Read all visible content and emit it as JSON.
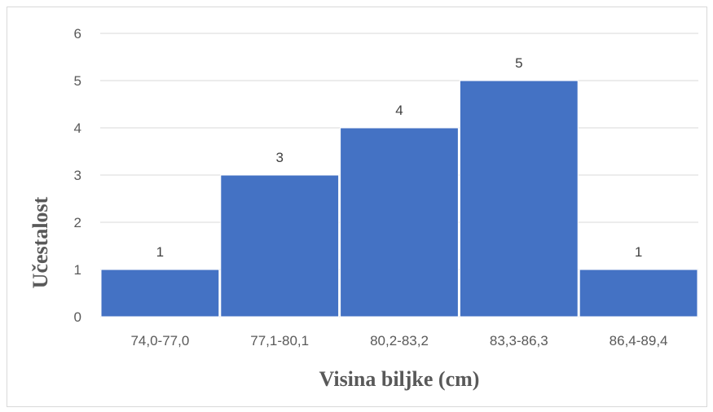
{
  "chart_data": {
    "type": "bar",
    "categories": [
      "74,0-77,0",
      "77,1-80,1",
      "80,2-83,2",
      "83,3-86,3",
      "86,4-89,4"
    ],
    "values": [
      1,
      3,
      4,
      5,
      1
    ],
    "data_labels": [
      "1",
      "3",
      "4",
      "5",
      "1"
    ],
    "xlabel": "Visina biljke (cm)",
    "ylabel": "Učestalost",
    "ylim": [
      0,
      6
    ],
    "yticks": [
      "0",
      "1",
      "2",
      "3",
      "4",
      "5",
      "6"
    ],
    "grid": true,
    "gap_width": 0,
    "bar_color": "#4472C4",
    "grid_color": "#d9d9d9"
  }
}
